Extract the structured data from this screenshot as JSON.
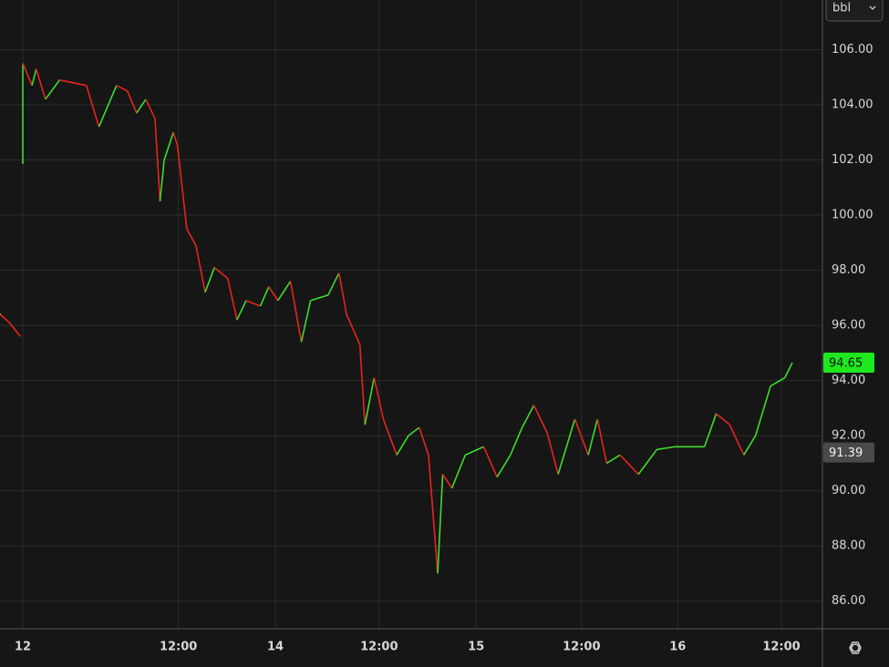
{
  "chart_data": {
    "type": "line",
    "unit_label": "bbl",
    "x": [
      -2.7,
      -1.6,
      -0.3,
      -0.15,
      0,
      0,
      1.1,
      1.6,
      2.7,
      4.4,
      6.0,
      7.6,
      9.1,
      9.8,
      11.2,
      12.5,
      13.6,
      14.7,
      15.8,
      16.4,
      16.9,
      18.0,
      18.5,
      19.6,
      20.7,
      21.8,
      22.9,
      24.5,
      25.6,
      26.7,
      28.4,
      29.4,
      30.5,
      32.0,
      33.3,
      34.4,
      36.5,
      37.8,
      38.7,
      40.3,
      40.9,
      42.0,
      43.1,
      44.7,
      46.1,
      47.4,
      48.5,
      49.6,
      50.2,
      51.3,
      52.9,
      55.1,
      56.7,
      58.3,
      59.7,
      61.1,
      62.7,
      64.0,
      66.0,
      67.6,
      68.7,
      69.8,
      71.4,
      73.6,
      75.8,
      78.0,
      80.2,
      81.5,
      82.9,
      84.5,
      86.2,
      87.6,
      89.4,
      91.1,
      92.0
    ],
    "values": [
      96.4,
      96.1,
      95.6,
      null,
      101.9,
      105.5,
      104.7,
      105.3,
      104.2,
      104.9,
      104.8,
      104.7,
      103.2,
      103.7,
      104.7,
      104.5,
      103.7,
      104.2,
      103.5,
      100.5,
      102.0,
      103.0,
      102.5,
      99.5,
      98.9,
      97.2,
      98.1,
      97.7,
      96.2,
      96.9,
      96.7,
      97.4,
      96.9,
      97.6,
      95.4,
      96.9,
      97.1,
      97.9,
      96.4,
      95.3,
      92.4,
      94.1,
      92.6,
      91.3,
      92.0,
      92.3,
      91.3,
      87.0,
      90.6,
      90.1,
      91.3,
      91.6,
      90.5,
      91.3,
      92.3,
      93.1,
      92.1,
      90.6,
      92.6,
      91.3,
      92.6,
      91.0,
      91.3,
      90.6,
      91.5,
      91.6,
      91.6,
      91.6,
      92.8,
      92.4,
      91.3,
      92.0,
      93.8,
      94.1,
      94.65
    ],
    "up_color": "#3ddc2f",
    "down_color": "#e8231f",
    "xlim": [
      -2.73,
      95.6
    ],
    "ylim": [
      85.0,
      107.8
    ],
    "xticks": [
      {
        "value": 0,
        "label": "12"
      },
      {
        "value": 18.6,
        "label": "12:00"
      },
      {
        "value": 30.2,
        "label": "14"
      },
      {
        "value": 42.6,
        "label": "12:00"
      },
      {
        "value": 54.2,
        "label": "15"
      },
      {
        "value": 66.8,
        "label": "12:00"
      },
      {
        "value": 78.3,
        "label": "16"
      },
      {
        "value": 90.7,
        "label": "12:00"
      }
    ],
    "yticks": [
      {
        "value": 86,
        "label": "86.00"
      },
      {
        "value": 88,
        "label": "88.00"
      },
      {
        "value": 90,
        "label": "90.00"
      },
      {
        "value": 92,
        "label": "92.00"
      },
      {
        "value": 94,
        "label": "94.00"
      },
      {
        "value": 96,
        "label": "96.00"
      },
      {
        "value": 98,
        "label": "98.00"
      },
      {
        "value": 100,
        "label": "100.00"
      },
      {
        "value": 102,
        "label": "102.00"
      },
      {
        "value": 104,
        "label": "104.00"
      },
      {
        "value": 106,
        "label": "106.00"
      }
    ],
    "price_labels": [
      {
        "value": 94.65,
        "color": "#1ee81e",
        "text_color": "#111111"
      },
      {
        "value": 91.39,
        "color": "#4a4a4a",
        "text_color": "#f0f0f0"
      }
    ],
    "grid": true
  }
}
